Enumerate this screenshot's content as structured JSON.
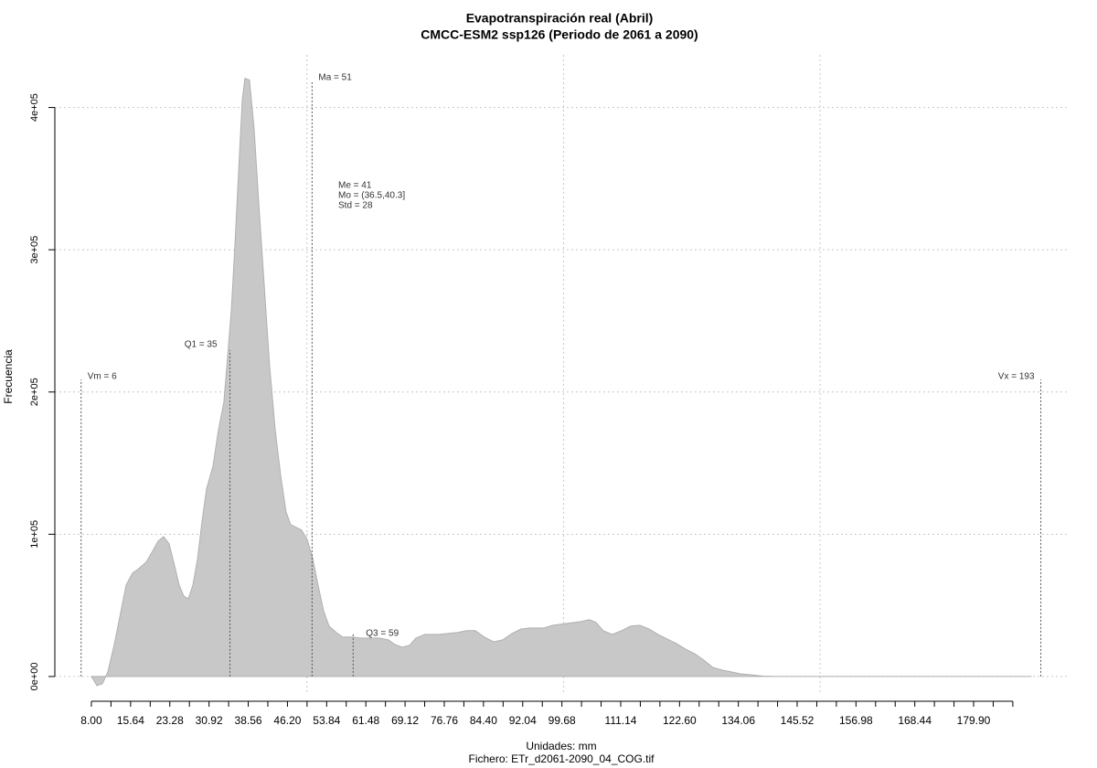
{
  "chart_data": {
    "type": "area",
    "title": "Evapotranspiración real (Abril)",
    "subtitle": "CMCC-ESM2 ssp126 (Periodo de 2061 a 2090)",
    "x_label": "Unidades: mm",
    "y_label": "Frecuencia",
    "caption": "Fichero: ETr_d2061-2090_04_COG.tif",
    "color": "#c8c8c8",
    "grid": true,
    "xlim": [
      0.88,
      198.6
    ],
    "ylim": [
      -12900,
      437000
    ],
    "xgrid": [
      50,
      100,
      150
    ],
    "yticks": [
      {
        "value": 0,
        "label": "0e+00"
      },
      {
        "value": 100000,
        "label": "1e+05"
      },
      {
        "value": 200000,
        "label": "2e+05"
      },
      {
        "value": 300000,
        "label": "3e+05"
      },
      {
        "value": 400000,
        "label": "4e+05"
      }
    ],
    "xticks": [
      {
        "value": 8,
        "label": "8.00"
      },
      {
        "value": 11.82,
        "label": null
      },
      15.64,
      {
        "value": 19.46,
        "label": null
      },
      23.28,
      {
        "value": 27.1,
        "label": null
      },
      30.92,
      {
        "value": 34.74,
        "label": null
      },
      38.56,
      {
        "value": 42.38,
        "label": null
      },
      {
        "value": 46.2,
        "label": "46.20"
      },
      {
        "value": 50.02,
        "label": null
      },
      53.84,
      {
        "value": 57.66,
        "label": null
      },
      61.48,
      {
        "value": 65.3,
        "label": null
      },
      69.12,
      {
        "value": 72.94,
        "label": null
      },
      76.76,
      {
        "value": 80.58,
        "label": null
      },
      {
        "value": 84.4,
        "label": "84.40"
      },
      {
        "value": 88.22,
        "label": null
      },
      92.04,
      {
        "value": 95.86,
        "label": null
      },
      99.68,
      {
        "value": 103.5,
        "label": null
      },
      {
        "value": 107.32,
        "label": null
      },
      111.14,
      {
        "value": 114.96,
        "label": null
      },
      {
        "value": 118.78,
        "label": null
      },
      {
        "value": 122.6,
        "label": "122.60"
      },
      {
        "value": 126.42,
        "label": null
      },
      {
        "value": 130.24,
        "label": null
      },
      134.06,
      {
        "value": 137.88,
        "label": null
      },
      {
        "value": 141.7,
        "label": null
      },
      145.52,
      {
        "value": 149.34,
        "label": null
      },
      {
        "value": 153.16,
        "label": null
      },
      156.98,
      {
        "value": 160.8,
        "label": null
      },
      {
        "value": 164.62,
        "label": null
      },
      168.44,
      {
        "value": 172.26,
        "label": null
      },
      {
        "value": 176.08,
        "label": null
      },
      {
        "value": 179.9,
        "label": "179.90"
      },
      {
        "value": 183.72,
        "label": null
      },
      {
        "value": 187.54,
        "label": null
      }
    ],
    "x": [
      8.0,
      9.07,
      10.14,
      11.21,
      12.45,
      13.7,
      14.77,
      16.01,
      17.26,
      18.69,
      19.93,
      21.0,
      22.07,
      23.14,
      24.03,
      25.1,
      25.99,
      26.88,
      27.77,
      28.66,
      29.55,
      30.44,
      31.69,
      32.76,
      33.82,
      34.54,
      35.25,
      35.96,
      36.67,
      37.39,
      37.92,
      38.81,
      39.7,
      40.59,
      41.66,
      42.73,
      43.8,
      44.87,
      45.93,
      46.82,
      47.89,
      48.96,
      50.03,
      51.1,
      52.17,
      53.24,
      54.3,
      55.73,
      56.98,
      58.76,
      60.54,
      62.32,
      64.1,
      65.88,
      67.13,
      68.55,
      69.98,
      71.22,
      73.0,
      75.68,
      79.24,
      81.02,
      82.8,
      84.58,
      86.36,
      88.14,
      89.92,
      91.7,
      93.49,
      96.16,
      97.94,
      100.61,
      103.28,
      105.06,
      106.31,
      107.73,
      109.51,
      111.29,
      113.08,
      114.86,
      116.64,
      118.42,
      120.2,
      121.98,
      123.76,
      125.54,
      127.32,
      129.1,
      130.89,
      132.67,
      134.45,
      136.23,
      138.9,
      141.57,
      150.47,
      168.28,
      191.08
    ],
    "values": [
      0,
      -6400,
      -5100,
      3300,
      22500,
      45000,
      64300,
      72700,
      75900,
      80400,
      88100,
      95200,
      98400,
      93300,
      80400,
      64300,
      56600,
      54700,
      64300,
      82300,
      109300,
      131800,
      147900,
      173600,
      192900,
      225100,
      257200,
      302200,
      353700,
      405100,
      420500,
      419300,
      385800,
      334300,
      276500,
      218600,
      173600,
      141500,
      115800,
      106800,
      104900,
      102900,
      96500,
      83600,
      64300,
      46300,
      35400,
      30900,
      27700,
      27700,
      27000,
      27000,
      27000,
      25700,
      22500,
      20600,
      21900,
      27000,
      29600,
      29600,
      30900,
      32200,
      32200,
      27700,
      24400,
      25700,
      30200,
      33400,
      34100,
      34100,
      36000,
      37300,
      38600,
      39900,
      38000,
      32200,
      29600,
      32200,
      35400,
      36000,
      33400,
      29600,
      26400,
      23200,
      19300,
      16100,
      11600,
      6400,
      4500,
      3200,
      1900,
      1300,
      300,
      0,
      0,
      0,
      0
    ],
    "stats": [
      {
        "label": "Vm = 6",
        "value": 6
      },
      {
        "label": "Q1 = 35",
        "value": 35
      },
      {
        "label": "Ma = 51",
        "value": 51
      },
      {
        "label": "Q3 = 59",
        "value": 59
      },
      {
        "label": "Vx = 193",
        "value": 193
      }
    ],
    "notes": [
      "Me = 41",
      "Mo = (36.5,40.3]",
      "Std = 28"
    ]
  }
}
